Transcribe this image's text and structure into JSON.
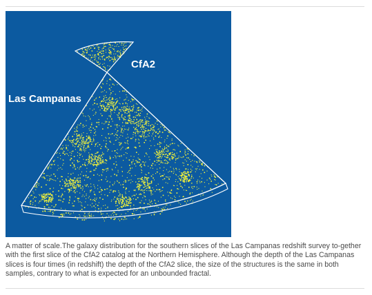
{
  "figure": {
    "labels": {
      "cfa2": "CfA2",
      "las_campanas": "Las Campanas"
    },
    "colors": {
      "background": "#0c5aa0",
      "outline": "#ffffff",
      "galaxies": "#f2f23a"
    }
  },
  "caption": {
    "text": "A matter of scale.The galaxy distribution for the southern slices of the Las Campanas redshift survey to-gether with the first slice of the CfA2 catalog at the Northern Hemisphere. Although the depth of the Las Campanas slices is four times (in redshift) the depth of the CfA2 slice, the size of the structures is the same in both samples, contrary to what is expected for an unbounded fractal."
  }
}
